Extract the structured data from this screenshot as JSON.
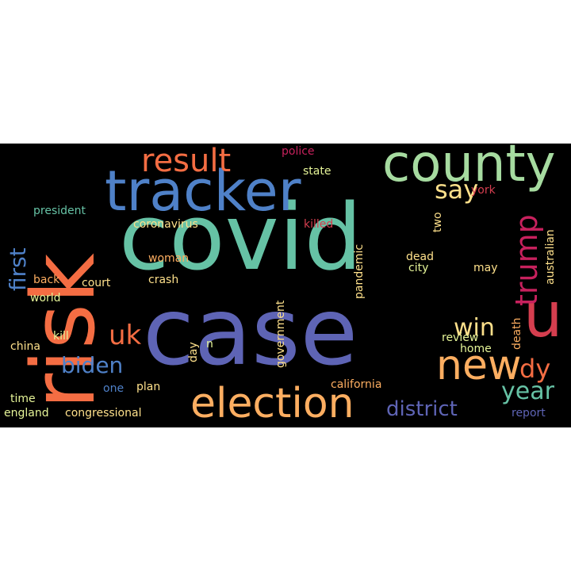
{
  "word_cloud": {
    "background": "#000000",
    "words": [
      {
        "text": "covid",
        "color": "#66c2a5"
      },
      {
        "text": "case",
        "color": "#5e64b5"
      },
      {
        "text": "risk",
        "color": "#f46d43"
      },
      {
        "text": "tracker",
        "color": "#4f81c8"
      },
      {
        "text": "county",
        "color": "#a6dba0"
      },
      {
        "text": "election",
        "color": "#fdae61"
      },
      {
        "text": "new",
        "color": "#fdae61"
      },
      {
        "text": "u",
        "color": "#d53e4f"
      },
      {
        "text": "result",
        "color": "#f46d43"
      },
      {
        "text": "trump",
        "color": "#c7215d"
      },
      {
        "text": "say",
        "color": "#fee08b"
      },
      {
        "text": "district",
        "color": "#5e64b5"
      },
      {
        "text": "year",
        "color": "#66c2a5"
      },
      {
        "text": "win",
        "color": "#fee08b"
      },
      {
        "text": "dy",
        "color": "#f46d43"
      },
      {
        "text": "uk",
        "color": "#f46d43"
      },
      {
        "text": "biden",
        "color": "#4f81c8"
      },
      {
        "text": "first",
        "color": "#4f81c8"
      },
      {
        "text": "president",
        "color": "#66c2a5"
      },
      {
        "text": "coronavirus",
        "color": "#fee08b"
      },
      {
        "text": "killed",
        "color": "#d53e4f"
      },
      {
        "text": "police",
        "color": "#c7215d"
      },
      {
        "text": "state",
        "color": "#e6f598"
      },
      {
        "text": "york",
        "color": "#d53e4f"
      },
      {
        "text": "two",
        "color": "#fee08b"
      },
      {
        "text": "australian",
        "color": "#fee08b"
      },
      {
        "text": "pandemic",
        "color": "#fee08b"
      },
      {
        "text": "dead",
        "color": "#fee08b"
      },
      {
        "text": "city",
        "color": "#e6f598"
      },
      {
        "text": "may",
        "color": "#fee08b"
      },
      {
        "text": "woman",
        "color": "#fdae61"
      },
      {
        "text": "crash",
        "color": "#fee08b"
      },
      {
        "text": "court",
        "color": "#fee08b"
      },
      {
        "text": "back",
        "color": "#fdae61"
      },
      {
        "text": "world",
        "color": "#e6f598"
      },
      {
        "text": "government",
        "color": "#fee08b"
      },
      {
        "text": "kill",
        "color": "#e6f598"
      },
      {
        "text": "china",
        "color": "#fee08b"
      },
      {
        "text": "day",
        "color": "#fee08b"
      },
      {
        "text": "n",
        "color": "#e6f598"
      },
      {
        "text": "review",
        "color": "#e6f598"
      },
      {
        "text": "home",
        "color": "#e6f598"
      },
      {
        "text": "death",
        "color": "#fdae61"
      },
      {
        "text": "one",
        "color": "#4f81c8"
      },
      {
        "text": "plan",
        "color": "#fee08b"
      },
      {
        "text": "california",
        "color": "#fdae61"
      },
      {
        "text": "time",
        "color": "#e6f598"
      },
      {
        "text": "england",
        "color": "#e6f598"
      },
      {
        "text": "congressional",
        "color": "#fee08b"
      },
      {
        "text": "report",
        "color": "#5e64b5"
      }
    ]
  }
}
